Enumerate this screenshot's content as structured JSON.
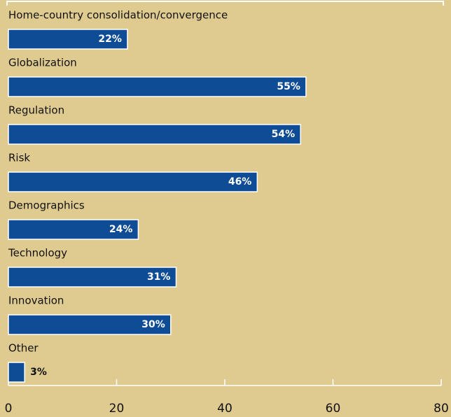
{
  "chart_data": {
    "type": "barh",
    "categories": [
      "Home-country consolidation/convergence",
      "Globalization",
      "Regulation",
      "Risk",
      "Demographics",
      "Technology",
      "Innovation",
      "Other"
    ],
    "values": [
      22,
      55,
      54,
      46,
      24,
      31,
      30,
      3
    ],
    "value_labels": [
      "22%",
      "55%",
      "54%",
      "46%",
      "24%",
      "31%",
      "30%",
      "3%"
    ],
    "color": "#0f4c96",
    "xlim": [
      0,
      80
    ],
    "xticks": [
      0,
      20,
      40,
      60,
      80
    ]
  }
}
